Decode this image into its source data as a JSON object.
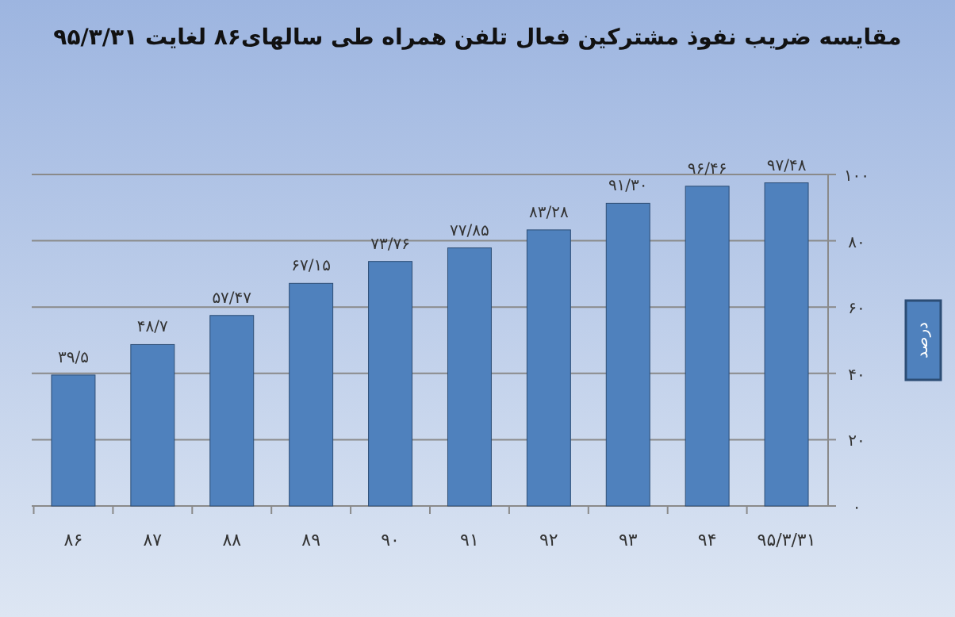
{
  "chart_data": {
    "type": "bar",
    "title": "مقایسه ضریب نفوذ مشترکین فعال تلفن همراه طی سالهای۸۶ لغایت ۹۵/۳/۳۱",
    "categories": [
      "۸۶",
      "۸۷",
      "۸۸",
      "۸۹",
      "۹۰",
      "۹۱",
      "۹۲",
      "۹۳",
      "۹۴",
      "۹۵/۳/۳۱"
    ],
    "series": [
      {
        "name": "درصد",
        "color": "#4f81bd",
        "values": [
          39.5,
          48.7,
          57.47,
          67.15,
          73.76,
          77.85,
          83.28,
          91.3,
          96.46,
          97.48
        ],
        "value_labels": [
          "۳۹/۵",
          "۴۸/۷",
          "۵۷/۴۷",
          "۶۷/۱۵",
          "۷۳/۷۶",
          "۷۷/۸۵",
          "۸۳/۲۸",
          "۹۱/۳۰",
          "۹۶/۴۶",
          "۹۷/۴۸"
        ]
      }
    ],
    "ylim": [
      0,
      100
    ],
    "yticks": [
      {
        "value": 0,
        "label": "۰"
      },
      {
        "value": 20,
        "label": "۲۰"
      },
      {
        "value": 40,
        "label": "۴۰"
      },
      {
        "value": 60,
        "label": "۶۰"
      },
      {
        "value": 80,
        "label": "۸۰"
      },
      {
        "value": 100,
        "label": "۱۰۰"
      }
    ],
    "grid": "y",
    "legend": "right"
  }
}
